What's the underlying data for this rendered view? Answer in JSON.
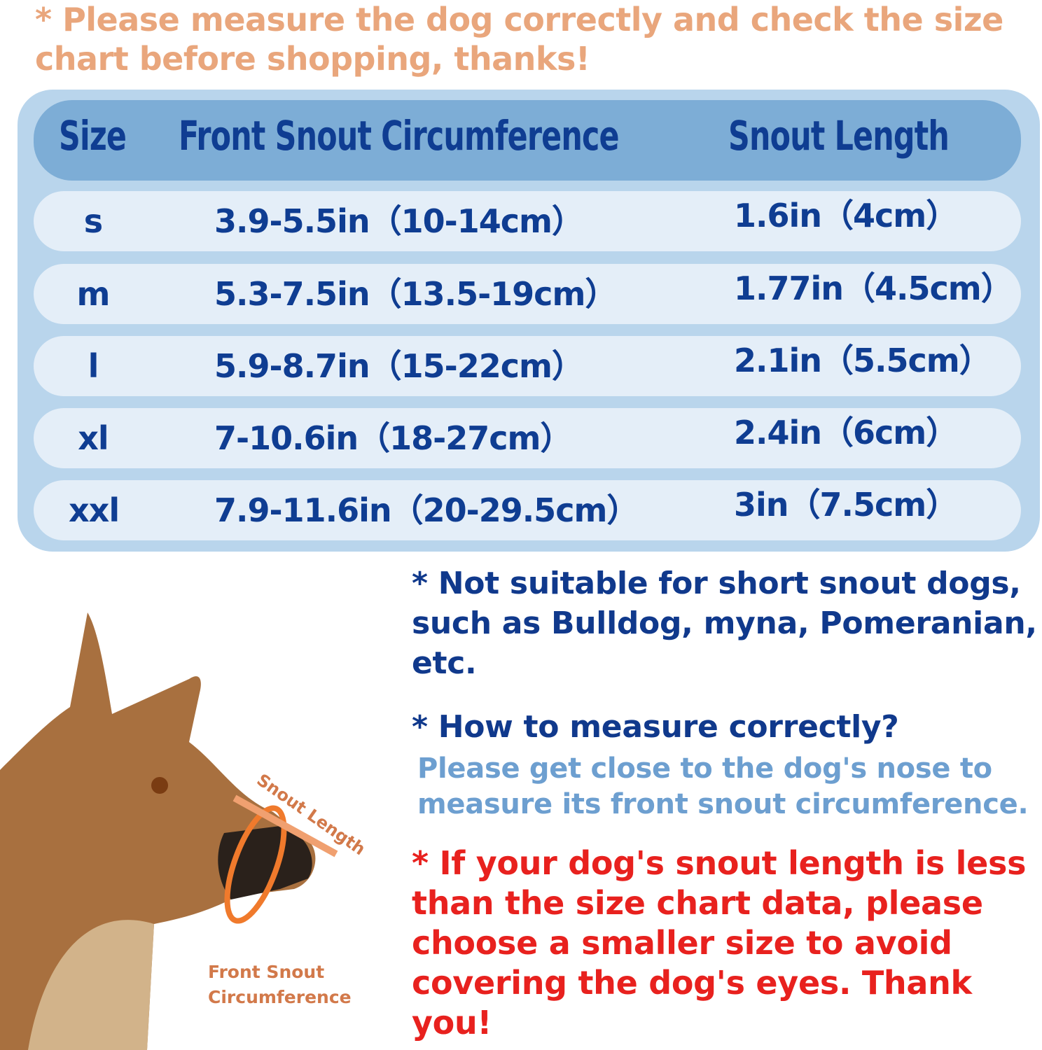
{
  "top_note": "* Please measure the dog correctly and check the size chart before shopping, thanks!",
  "table": {
    "headers": [
      "Size",
      "Front Snout Circumference",
      "Snout Length"
    ],
    "rows": [
      {
        "size": "s",
        "circumference": "3.9-5.5in（10-14cm）",
        "length": "1.6in（4cm）"
      },
      {
        "size": "m",
        "circumference": "5.3-7.5in（13.5-19cm）",
        "length": "1.77in（4.5cm）"
      },
      {
        "size": "l",
        "circumference": "5.9-8.7in（15-22cm）",
        "length": "2.1in（5.5cm）"
      },
      {
        "size": "xl",
        "circumference": "7-10.6in（18-27cm）",
        "length": "2.4in（6cm）"
      },
      {
        "size": "xxl",
        "circumference": "7.9-11.6in（20-29.5cm）",
        "length": "3in（7.5cm）"
      }
    ]
  },
  "notes": {
    "short_snout": "* Not suitable for short snout dogs, such as Bulldog, myna, Pomeranian, etc.",
    "how_to_heading": "* How to measure correctly?",
    "how_to_body": "Please get close to the dog's nose to measure its front snout circumference.",
    "warning": "* If your dog's snout length is less than the size chart data, please choose a smaller size to avoid covering the dog's eyes. Thank you!"
  },
  "illustration": {
    "snout_length_label": "Snout Length",
    "circumference_label_1": "Front Snout",
    "circumference_label_2": "Circumference"
  },
  "colors": {
    "accent_orange": "#e9a67c",
    "table_text": "#0f3d92",
    "header_bg": "#7dadd6",
    "warning_red": "#e8211e",
    "info_blue": "#6d9fd0"
  }
}
